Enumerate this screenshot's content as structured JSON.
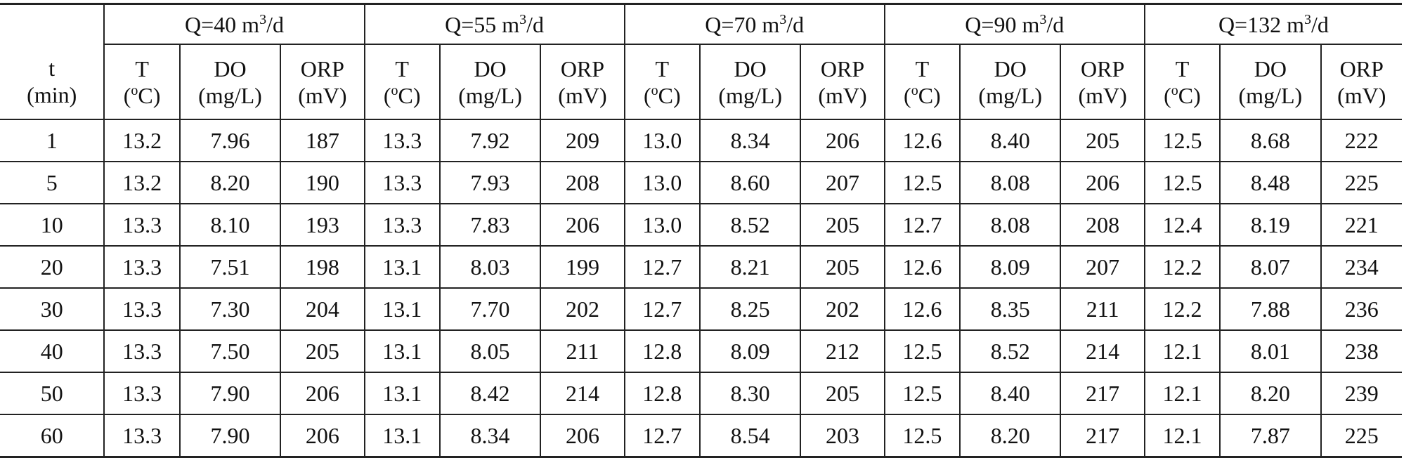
{
  "table": {
    "groups": [
      {
        "prefix": "Q=40  m",
        "sup": "3",
        "suffix": "/d"
      },
      {
        "prefix": "Q=55  m",
        "sup": "3",
        "suffix": "/d"
      },
      {
        "prefix": "Q=70  m",
        "sup": "3",
        "suffix": "/d"
      },
      {
        "prefix": "Q=90  m",
        "sup": "3",
        "suffix": "/d"
      },
      {
        "prefix": "Q=132  m",
        "sup": "3",
        "suffix": "/d"
      }
    ],
    "time_header": {
      "name": "t",
      "unit": "(min)"
    },
    "var_headers": [
      {
        "name": "T",
        "unit_pre": "(",
        "unit_sup": "o",
        "unit_post": "C)"
      },
      {
        "name": "DO",
        "unit": "(mg/L)"
      },
      {
        "name": "ORP",
        "unit": "(mV)"
      }
    ],
    "rows": [
      {
        "t": "1",
        "cells": [
          "13.2",
          "7.96",
          "187",
          "13.3",
          "7.92",
          "209",
          "13.0",
          "8.34",
          "206",
          "12.6",
          "8.40",
          "205",
          "12.5",
          "8.68",
          "222"
        ]
      },
      {
        "t": "5",
        "cells": [
          "13.2",
          "8.20",
          "190",
          "13.3",
          "7.93",
          "208",
          "13.0",
          "8.60",
          "207",
          "12.5",
          "8.08",
          "206",
          "12.5",
          "8.48",
          "225"
        ]
      },
      {
        "t": "10",
        "cells": [
          "13.3",
          "8.10",
          "193",
          "13.3",
          "7.83",
          "206",
          "13.0",
          "8.52",
          "205",
          "12.7",
          "8.08",
          "208",
          "12.4",
          "8.19",
          "221"
        ]
      },
      {
        "t": "20",
        "cells": [
          "13.3",
          "7.51",
          "198",
          "13.1",
          "8.03",
          "199",
          "12.7",
          "8.21",
          "205",
          "12.6",
          "8.09",
          "207",
          "12.2",
          "8.07",
          "234"
        ]
      },
      {
        "t": "30",
        "cells": [
          "13.3",
          "7.30",
          "204",
          "13.1",
          "7.70",
          "202",
          "12.7",
          "8.25",
          "202",
          "12.6",
          "8.35",
          "211",
          "12.2",
          "7.88",
          "236"
        ]
      },
      {
        "t": "40",
        "cells": [
          "13.3",
          "7.50",
          "205",
          "13.1",
          "8.05",
          "211",
          "12.8",
          "8.09",
          "212",
          "12.5",
          "8.52",
          "214",
          "12.1",
          "8.01",
          "238"
        ]
      },
      {
        "t": "50",
        "cells": [
          "13.3",
          "7.90",
          "206",
          "13.1",
          "8.42",
          "214",
          "12.8",
          "8.30",
          "205",
          "12.5",
          "8.40",
          "217",
          "12.1",
          "8.20",
          "239"
        ]
      },
      {
        "t": "60",
        "cells": [
          "13.3",
          "7.90",
          "206",
          "13.1",
          "8.34",
          "206",
          "12.7",
          "8.54",
          "203",
          "12.5",
          "8.20",
          "217",
          "12.1",
          "7.87",
          "225"
        ]
      }
    ]
  }
}
